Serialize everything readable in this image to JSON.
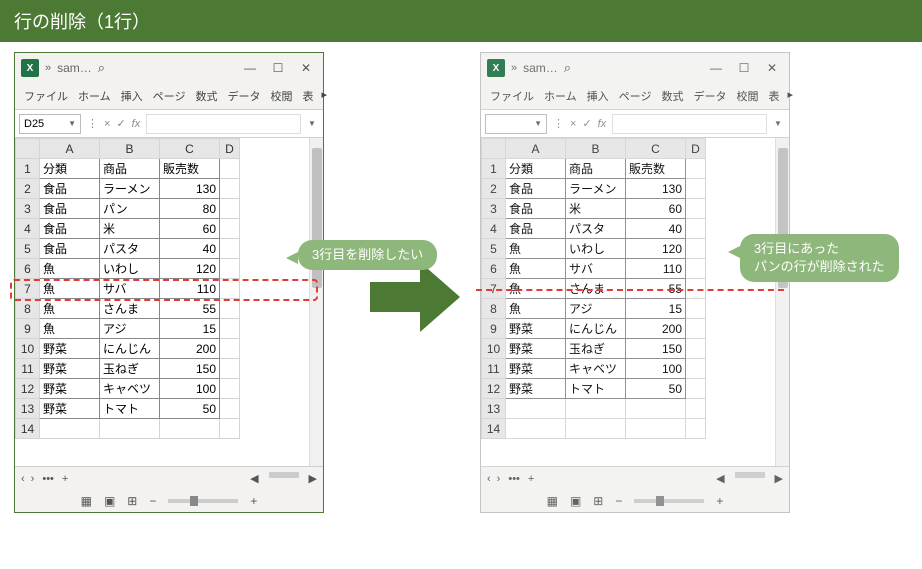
{
  "title": "行の削除（1行）",
  "window": {
    "app_label": "X",
    "name": "sam…",
    "tabs": [
      "ファイル",
      "ホーム",
      "挿入",
      "ページ",
      "数式",
      "データ",
      "校閲",
      "表"
    ],
    "namebox": "D25",
    "fx_label": "fx"
  },
  "columns": [
    "A",
    "B",
    "C",
    "D"
  ],
  "headers": [
    "分類",
    "商品",
    "販売数"
  ],
  "before_rows": [
    [
      "食品",
      "ラーメン",
      "130"
    ],
    [
      "食品",
      "パン",
      "80"
    ],
    [
      "食品",
      "米",
      "60"
    ],
    [
      "食品",
      "パスタ",
      "40"
    ],
    [
      "魚",
      "いわし",
      "120"
    ],
    [
      "魚",
      "サバ",
      "110"
    ],
    [
      "魚",
      "さんま",
      "55"
    ],
    [
      "魚",
      "アジ",
      "15"
    ],
    [
      "野菜",
      "にんじん",
      "200"
    ],
    [
      "野菜",
      "玉ねぎ",
      "150"
    ],
    [
      "野菜",
      "キャベツ",
      "100"
    ],
    [
      "野菜",
      "トマト",
      "50"
    ]
  ],
  "after_rows": [
    [
      "食品",
      "ラーメン",
      "130"
    ],
    [
      "食品",
      "米",
      "60"
    ],
    [
      "食品",
      "パスタ",
      "40"
    ],
    [
      "魚",
      "いわし",
      "120"
    ],
    [
      "魚",
      "サバ",
      "110"
    ],
    [
      "魚",
      "さんま",
      "55"
    ],
    [
      "魚",
      "アジ",
      "15"
    ],
    [
      "野菜",
      "にんじん",
      "200"
    ],
    [
      "野菜",
      "玉ねぎ",
      "150"
    ],
    [
      "野菜",
      "キャベツ",
      "100"
    ],
    [
      "野菜",
      "トマト",
      "50"
    ]
  ],
  "callout1": "3行目を削除したい",
  "callout2": "3行目にあった\nパンの行が削除された",
  "colors": {
    "brand": "#4c7a34",
    "callout": "#8eb77b",
    "dash": "#e53935",
    "excel_green": "#217346"
  }
}
